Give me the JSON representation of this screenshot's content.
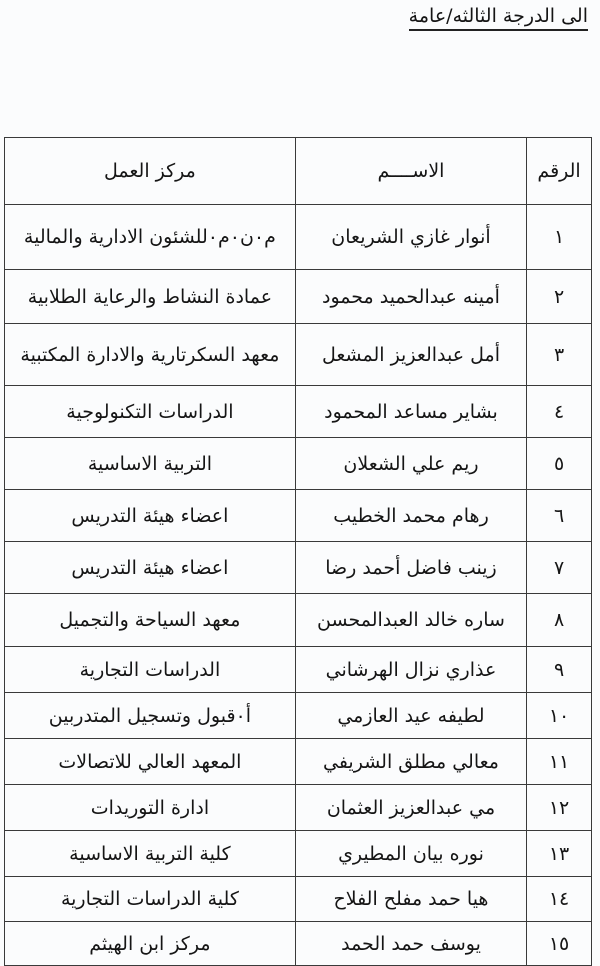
{
  "title": "الى الدرجة الثالثه/عامة",
  "table": {
    "headers": {
      "number": "الرقم",
      "name": "الاســــم",
      "workplace": "مركز العمل"
    },
    "rows": [
      {
        "number": "١",
        "name": "أنوار غازي الشريعان",
        "workplace": "م٠ن٠م٠للشئون الادارية والمالية"
      },
      {
        "number": "٢",
        "name": "أمينه عبدالحميد محمود",
        "workplace": "عمادة النشاط والرعاية الطلابية"
      },
      {
        "number": "٣",
        "name": "أمل عبدالعزيز المشعل",
        "workplace": "معهد السكرتارية والادارة المكتبية"
      },
      {
        "number": "٤",
        "name": "بشاير مساعد المحمود",
        "workplace": "الدراسات التكنولوجية"
      },
      {
        "number": "٥",
        "name": "ريم علي الشعلان",
        "workplace": "التربية الاساسية"
      },
      {
        "number": "٦",
        "name": "رهام محمد الخطيب",
        "workplace": "اعضاء هيئة التدريس"
      },
      {
        "number": "٧",
        "name": "زينب فاضل أحمد رضا",
        "workplace": "اعضاء هيئة التدريس"
      },
      {
        "number": "٨",
        "name": "ساره خالد العبدالمحسن",
        "workplace": "معهد السياحة والتجميل"
      },
      {
        "number": "٩",
        "name": "عذاري نزال الهرشاني",
        "workplace": "الدراسات التجارية"
      },
      {
        "number": "١٠",
        "name": "لطيفه عيد العازمي",
        "workplace": "أ٠قبول وتسجيل المتدربين"
      },
      {
        "number": "١١",
        "name": "معالي مطلق الشريفي",
        "workplace": "المعهد العالي للاتصالات"
      },
      {
        "number": "١٢",
        "name": "مي عبدالعزيز العثمان",
        "workplace": "ادارة التوريدات"
      },
      {
        "number": "١٣",
        "name": "نوره بيان المطيري",
        "workplace": "كلية التربية الاساسية"
      },
      {
        "number": "١٤",
        "name": "هيا حمد مفلح الفلاح",
        "workplace": "كلية الدراسات التجارية"
      },
      {
        "number": "١٥",
        "name": "يوسف حمد الحمد",
        "workplace": "مركز ابن الهيثم"
      }
    ]
  }
}
